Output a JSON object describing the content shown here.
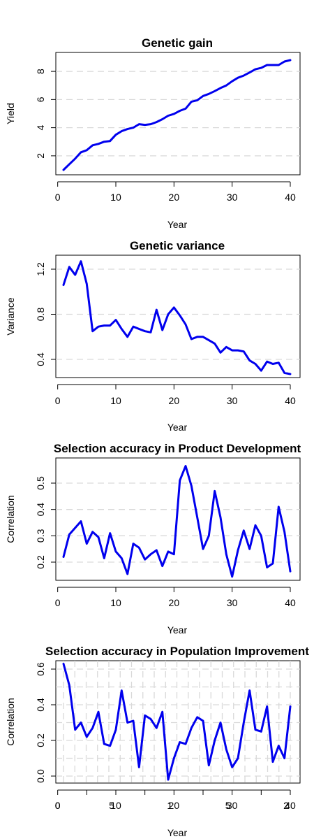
{
  "chart_data": [
    {
      "type": "line",
      "title": "Genetic gain",
      "xlabel": "Year",
      "ylabel": "Yield",
      "xlim": [
        1,
        40
      ],
      "ylim": [
        0.8,
        9.0
      ],
      "xticks": [
        "0",
        "10",
        "20",
        "30",
        "40"
      ],
      "yticks": [
        "2",
        "4",
        "6",
        "8"
      ],
      "grid": "horizontal dashed",
      "color": "#0000ee",
      "series": [
        {
          "x": [
            1,
            2,
            3,
            4,
            5,
            6,
            7,
            8,
            9,
            10,
            11,
            12,
            13,
            14,
            15,
            16,
            17,
            18,
            19,
            20,
            21,
            22,
            23,
            24,
            25,
            26,
            27,
            28,
            29,
            30,
            31,
            32,
            33,
            34,
            35,
            36,
            37,
            38,
            39,
            40
          ],
          "values": [
            1.0,
            1.4,
            1.8,
            2.25,
            2.4,
            2.75,
            2.85,
            3.0,
            3.05,
            3.5,
            3.75,
            3.9,
            4.0,
            4.25,
            4.2,
            4.25,
            4.4,
            4.6,
            4.85,
            4.98,
            5.2,
            5.35,
            5.85,
            5.95,
            6.25,
            6.4,
            6.6,
            6.82,
            7.0,
            7.3,
            7.55,
            7.7,
            7.92,
            8.15,
            8.25,
            8.45,
            8.45,
            8.45,
            8.7,
            8.8
          ]
        }
      ]
    },
    {
      "type": "line",
      "title": "Genetic variance",
      "xlabel": "Year",
      "ylabel": "Variance",
      "xlim": [
        1,
        40
      ],
      "ylim": [
        0.23,
        1.31
      ],
      "xticks": [
        "0",
        "10",
        "20",
        "30",
        "40"
      ],
      "yticks": [
        "0.4",
        "0.8",
        "1.2"
      ],
      "grid": "horizontal dashed",
      "color": "#0000ee",
      "series": [
        {
          "x": [
            1,
            2,
            3,
            4,
            5,
            6,
            7,
            8,
            9,
            10,
            11,
            12,
            13,
            14,
            15,
            16,
            17,
            18,
            19,
            20,
            21,
            22,
            23,
            24,
            25,
            26,
            27,
            28,
            29,
            30,
            31,
            32,
            33,
            34,
            35,
            36,
            37,
            38,
            39,
            40
          ],
          "values": [
            1.06,
            1.22,
            1.15,
            1.27,
            1.07,
            0.65,
            0.69,
            0.7,
            0.7,
            0.75,
            0.67,
            0.6,
            0.69,
            0.67,
            0.65,
            0.64,
            0.84,
            0.66,
            0.8,
            0.86,
            0.79,
            0.71,
            0.58,
            0.6,
            0.6,
            0.57,
            0.54,
            0.46,
            0.51,
            0.48,
            0.48,
            0.47,
            0.39,
            0.36,
            0.3,
            0.38,
            0.36,
            0.37,
            0.28,
            0.27
          ]
        }
      ]
    },
    {
      "type": "line",
      "title": "Selection accuracy in Product Development",
      "xlabel": "Year",
      "ylabel": "Correlation",
      "xlim": [
        1,
        40
      ],
      "ylim": [
        0.14,
        0.58
      ],
      "xticks": [
        "0",
        "10",
        "20",
        "30",
        "40"
      ],
      "yticks": [
        "0.2",
        "0.3",
        "0.4",
        "0.5"
      ],
      "grid": "horizontal dashed",
      "color": "#0000ee",
      "series": [
        {
          "x": [
            1,
            2,
            3,
            4,
            5,
            6,
            7,
            8,
            9,
            10,
            11,
            12,
            13,
            14,
            15,
            16,
            17,
            18,
            19,
            20,
            21,
            22,
            23,
            24,
            25,
            26,
            27,
            28,
            29,
            30,
            31,
            32,
            33,
            34,
            35,
            36,
            37,
            38,
            39,
            40
          ],
          "values": [
            0.22,
            0.305,
            0.33,
            0.355,
            0.27,
            0.315,
            0.295,
            0.215,
            0.31,
            0.24,
            0.215,
            0.155,
            0.27,
            0.255,
            0.21,
            0.23,
            0.245,
            0.185,
            0.24,
            0.23,
            0.51,
            0.565,
            0.49,
            0.37,
            0.25,
            0.3,
            0.47,
            0.37,
            0.23,
            0.145,
            0.245,
            0.32,
            0.25,
            0.34,
            0.3,
            0.18,
            0.195,
            0.41,
            0.315,
            0.165
          ]
        }
      ]
    },
    {
      "type": "line",
      "title": "Selection accuracy in Population Improvement",
      "xlabel": "Year",
      "ylabel": "Correlation",
      "xlim": [
        1,
        40
      ],
      "ylim": [
        -0.03,
        0.66
      ],
      "xticks": [
        "0",
        "10",
        "20",
        "30",
        "40"
      ],
      "xticks_overlay": [
        "5",
        "1",
        "5",
        "2",
        "0"
      ],
      "yticks": [
        "0.0",
        "0.2",
        "0.4",
        "0.6"
      ],
      "grid": "horizontal and vertical dashed",
      "color": "#0000ee",
      "series": [
        {
          "x": [
            1,
            2,
            3,
            4,
            5,
            6,
            7,
            8,
            9,
            10,
            11,
            12,
            13,
            14,
            15,
            16,
            17,
            18,
            19,
            20,
            21,
            22,
            23,
            24,
            25,
            26,
            27,
            28,
            29,
            30,
            31,
            32,
            33,
            34,
            35,
            36,
            37,
            38,
            39,
            40
          ],
          "values": [
            0.63,
            0.51,
            0.26,
            0.3,
            0.22,
            0.27,
            0.36,
            0.18,
            0.17,
            0.26,
            0.48,
            0.3,
            0.31,
            0.05,
            0.34,
            0.32,
            0.27,
            0.36,
            -0.02,
            0.1,
            0.19,
            0.18,
            0.27,
            0.33,
            0.31,
            0.06,
            0.2,
            0.3,
            0.15,
            0.05,
            0.1,
            0.3,
            0.48,
            0.26,
            0.25,
            0.39,
            0.08,
            0.17,
            0.1,
            0.39
          ]
        }
      ]
    }
  ]
}
